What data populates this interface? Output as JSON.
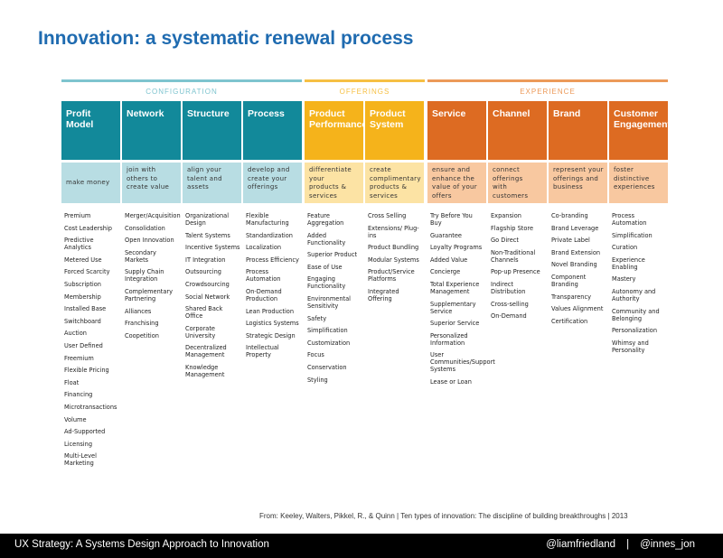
{
  "title": "Innovation: a systematic renewal process",
  "groups": [
    {
      "label": "CONFIGURATION",
      "color": "#7ec4cf"
    },
    {
      "label": "OFFERINGS",
      "color": "#f6c044"
    },
    {
      "label": "EXPERIENCE",
      "color": "#ec9a59"
    }
  ],
  "columns": [
    {
      "name": "Profit\nModel",
      "desc": "make money",
      "head_color": "#12899a",
      "desc_color": "#b8dde3",
      "items": [
        "Premium",
        "Cost Leadership",
        "Predictive Analytics",
        "Metered Use",
        "Forced Scarcity",
        "Subscription",
        "Membership",
        "Installed Base",
        "Switchboard",
        "Auction",
        "User Defined",
        "Freemium",
        "Flexible Pricing",
        "Float",
        "Financing",
        "Microtransactions",
        "Volume",
        "Ad-Supported",
        "Licensing",
        "Multi-Level Marketing"
      ]
    },
    {
      "name": "Network",
      "desc": "join with\nothers to\ncreate value",
      "head_color": "#12899a",
      "desc_color": "#b8dde3",
      "items": [
        "Merger/Acquisition",
        "Consolidation",
        "Open Innovation",
        "Secondary Markets",
        "Supply Chain Integration",
        "Complementary Partnering",
        "Alliances",
        "Franchising",
        "Coopetition"
      ]
    },
    {
      "name": "Structure",
      "desc": "align your\ntalent and\nassets",
      "head_color": "#12899a",
      "desc_color": "#b8dde3",
      "items": [
        "Organizational Design",
        "Talent Systems",
        "Incentive Systems",
        "IT Integration",
        "Outsourcing",
        "Crowdsourcing",
        "Social Network",
        "Shared Back Office",
        "Corporate University",
        "Decentralized Management",
        "Knowledge Management"
      ]
    },
    {
      "name": "Process",
      "desc": "develop and\ncreate your\nofferings",
      "head_color": "#12899a",
      "desc_color": "#b8dde3",
      "items": [
        "Flexible Manufacturing",
        "Standardization",
        "Localization",
        "Process Efficiency",
        "Process Automation",
        "On-Demand Production",
        "Lean Production",
        "Logistics Systems",
        "Strategic Design",
        "Intellectual Property"
      ]
    },
    {
      "name": "Product\nPerformance",
      "desc": "differentiate\nyour\nproducts &\nservices",
      "head_color": "#f5b31b",
      "desc_color": "#fce3a4",
      "items": [
        "Feature Aggregation",
        "Added Functionality",
        "Superior Product",
        "Ease of Use",
        "Engaging Functionality",
        "Environmental Sensitivity",
        "Safety",
        "Simplification",
        "Customization",
        "Focus",
        "Conservation",
        "Styling"
      ]
    },
    {
      "name": "Product\nSystem",
      "desc": "create\ncomplimentary\nproducts &\nservices",
      "head_color": "#f5b31b",
      "desc_color": "#fce3a4",
      "items": [
        "Cross Selling",
        "Extensions/ Plug-ins",
        "Product Bundling",
        "Modular Systems",
        "Product/Service Platforms",
        "Integrated Offering"
      ]
    },
    {
      "name": "Service",
      "desc": "ensure and\nenhance the\nvalue of your\noffers",
      "head_color": "#dd6b22",
      "desc_color": "#f8c8a0",
      "items": [
        "Try Before You Buy",
        "Guarantee",
        "Loyalty Programs",
        "Added Value",
        "Concierge",
        "Total Experience Management",
        "Supplementary Service",
        "Superior Service",
        "Personalized Information",
        "User Communities/Support Systems",
        "Lease or Loan"
      ]
    },
    {
      "name": "Channel",
      "desc": "connect\nofferings\nwith\ncustomers",
      "head_color": "#dd6b22",
      "desc_color": "#f8c8a0",
      "items": [
        "Expansion",
        "Flagship Store",
        "Go Direct",
        "Non-Traditional Channels",
        "Pop-up Presence",
        "Indirect Distribution",
        "Cross-selling",
        "On-Demand"
      ]
    },
    {
      "name": "Brand",
      "desc": "represent your\nofferings and\nbusiness",
      "head_color": "#dd6b22",
      "desc_color": "#f8c8a0",
      "items": [
        "Co-branding",
        "Brand Leverage",
        "Private Label",
        "Brand Extension",
        "Novel Branding",
        "Component Branding",
        "Transparency",
        "Values Alignment",
        "Certification"
      ]
    },
    {
      "name": "Customer\nEngagement",
      "desc": "foster\ndistinctive\nexperiences",
      "head_color": "#dd6b22",
      "desc_color": "#f8c8a0",
      "items": [
        "Process Automation",
        "Simplification",
        "Curation",
        "Experience Enabling",
        "Mastery",
        "Autonomy and Authority",
        "Community and Belonging",
        "Personalization",
        "Whimsy and Personality"
      ]
    }
  ],
  "source": "From: Keeley, Walters, Pikkel, R., & Quinn | Ten types of innovation: The discipline of building breakthroughs | 2013",
  "footer": {
    "left": "UX Strategy: A Systems Design Approach to Innovation",
    "handle1": "@liamfriedland",
    "separator": "|",
    "handle2": "@innes_jon"
  }
}
